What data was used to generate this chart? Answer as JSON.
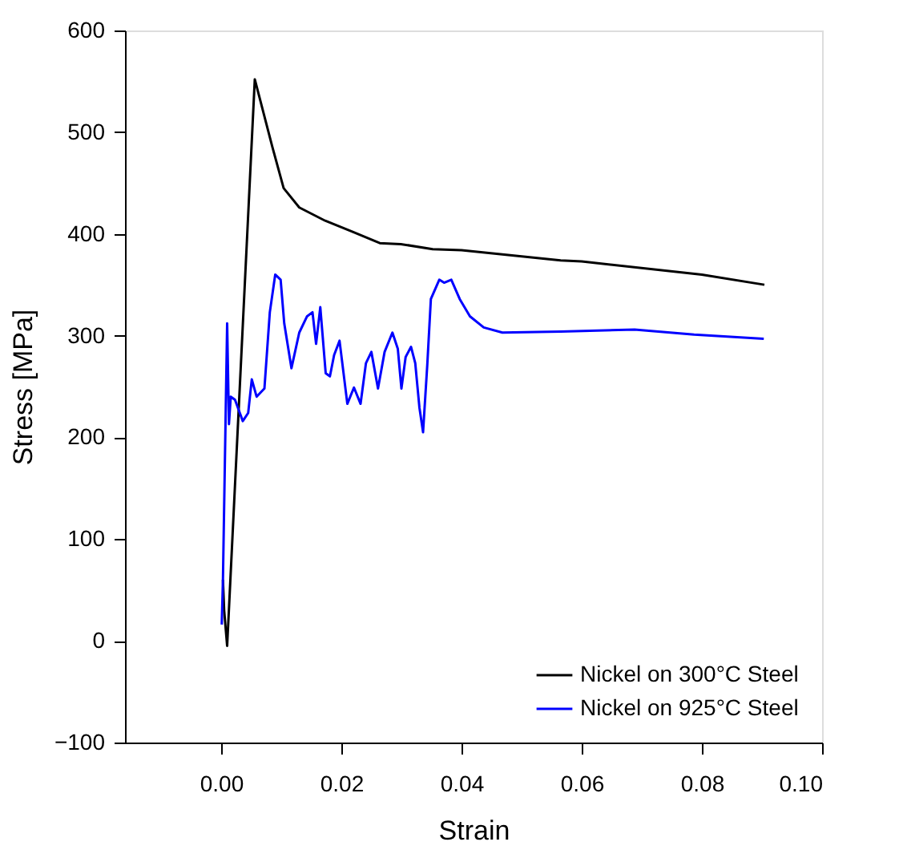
{
  "chart_data": {
    "type": "line",
    "xlabel": "Strain",
    "ylabel": "Stress [MPa]",
    "xlim": [
      -0.016,
      0.1
    ],
    "xticks": [
      {
        "value": 0,
        "label": "0.00"
      },
      {
        "value": 0.02,
        "label": "0.02"
      },
      {
        "value": 0.04,
        "label": "0.04"
      },
      {
        "value": 0.06,
        "label": "0.06"
      },
      {
        "value": 0.08,
        "label": "0.08"
      },
      {
        "value": 0.1,
        "label": "0.10"
      }
    ],
    "ylim": [
      -100,
      600
    ],
    "yticks": [
      -100,
      0,
      100,
      200,
      300,
      400,
      500,
      600
    ],
    "grid": false,
    "legend": "bottom right",
    "marker": "none",
    "line_style": "solid",
    "series": [
      {
        "name": "Nickel on 300°C Steel",
        "color": "#000000",
        "x": [
          0.0003,
          0.0005,
          0.001,
          0.0056,
          0.0085,
          0.0104,
          0.013,
          0.0173,
          0.0219,
          0.0264,
          0.0299,
          0.0352,
          0.04,
          0.0565,
          0.06,
          0.08,
          0.0904
        ],
        "values": [
          60,
          30,
          -5,
          552,
          486,
          445,
          426,
          413,
          402,
          391,
          390,
          385,
          384,
          374,
          373,
          360,
          350
        ]
      },
      {
        "name": "Nickel on 925°C Steel",
        "color": "#0000ff",
        "x": [
          0.0001,
          0.0003,
          0.001,
          0.0013,
          0.0016,
          0.0023,
          0.0036,
          0.0045,
          0.0051,
          0.0059,
          0.0072,
          0.0081,
          0.009,
          0.0099,
          0.0105,
          0.0117,
          0.013,
          0.0143,
          0.0152,
          0.0158,
          0.0165,
          0.0174,
          0.0181,
          0.0188,
          0.0197,
          0.021,
          0.0221,
          0.0232,
          0.0241,
          0.025,
          0.0261,
          0.0272,
          0.0285,
          0.0294,
          0.03,
          0.0307,
          0.0316,
          0.0323,
          0.033,
          0.0336,
          0.0343,
          0.0349,
          0.0363,
          0.0371,
          0.0383,
          0.0397,
          0.0414,
          0.0437,
          0.0468,
          0.0565,
          0.0688,
          0.0787,
          0.0903
        ],
        "values": [
          16,
          60,
          312,
          213,
          240,
          237,
          216,
          224,
          257,
          240,
          248,
          323,
          360,
          355,
          312,
          268,
          303,
          319,
          323,
          292,
          328,
          263,
          260,
          281,
          295,
          233,
          249,
          233,
          273,
          284,
          248,
          284,
          303,
          287,
          248,
          279,
          289,
          273,
          229,
          205,
          271,
          336,
          355,
          352,
          355,
          336,
          319,
          308,
          303,
          304,
          306,
          301,
          297
        ]
      }
    ]
  }
}
